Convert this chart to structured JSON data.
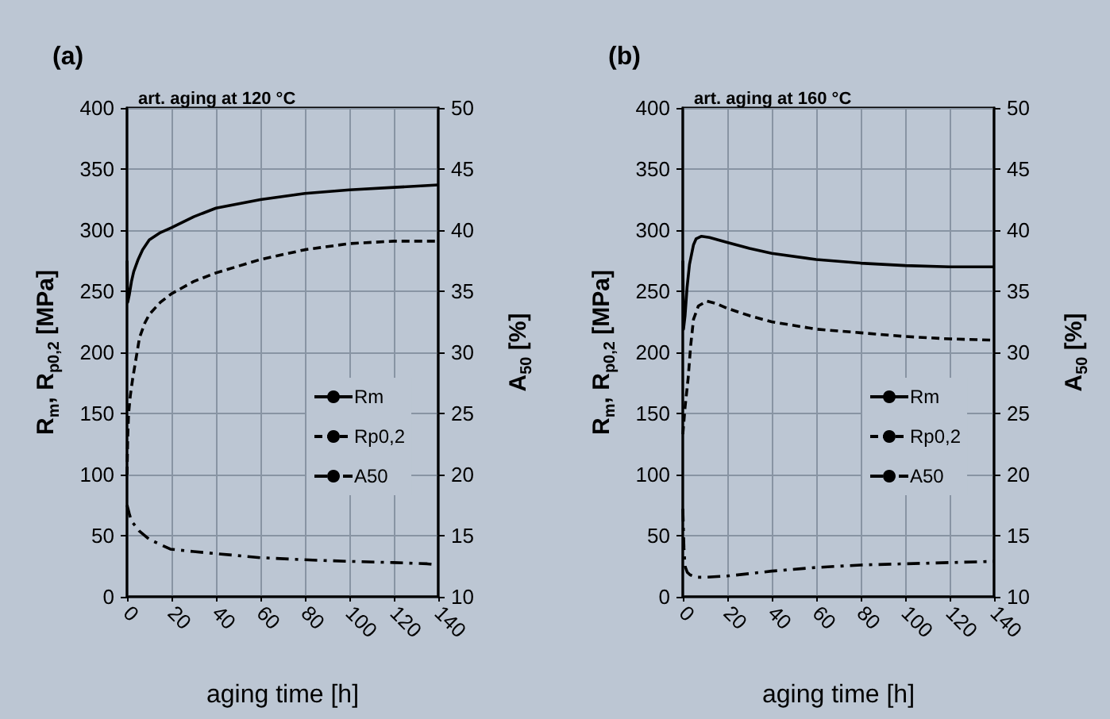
{
  "chart_data": [
    {
      "type": "line",
      "title": "(a)",
      "subtitle": "art. aging at 120 °C",
      "xlabel": "aging time [h]",
      "ylabel": "R$_{m}$, R$_{p0,2}$ [MPa]",
      "y2label": "A$_{50}$ [%]",
      "xlim": [
        0,
        140
      ],
      "xticks": [
        0,
        20,
        40,
        60,
        80,
        100,
        120,
        140
      ],
      "ylim": [
        0,
        400
      ],
      "yticks": [
        0,
        50,
        100,
        150,
        200,
        250,
        300,
        350,
        400
      ],
      "y2lim": [
        10,
        50
      ],
      "y2ticks": [
        10,
        15,
        20,
        25,
        30,
        35,
        40,
        45,
        50
      ],
      "grid": true,
      "legend": "bottom right",
      "marker": "none",
      "series": [
        {
          "name": "Rm",
          "color": "#000000",
          "line_style": "solid",
          "x": [
            0,
            0.3,
            1,
            2,
            3,
            5,
            7,
            10,
            15,
            20,
            30,
            40,
            60,
            80,
            100,
            120,
            140
          ],
          "values": [
            275,
            241,
            247,
            258,
            266,
            276,
            284,
            292,
            298,
            302,
            311,
            318,
            325,
            330,
            333,
            335,
            337
          ]
        },
        {
          "name": "Rp0,2",
          "color": "#000000",
          "line_style": "dashed",
          "x": [
            0,
            0.3,
            0.7,
            1.5,
            2.5,
            3.6,
            5.6,
            8,
            10,
            15,
            20,
            30,
            40,
            60,
            80,
            100,
            120,
            140
          ],
          "values": [
            100,
            130,
            150,
            165,
            178,
            190,
            212,
            224,
            231,
            241,
            248,
            258,
            265,
            276,
            284,
            289,
            291,
            291
          ]
        },
        {
          "name": "A50",
          "color": "#000000",
          "line_style": "dashdot",
          "axis": "y2",
          "x": [
            0,
            1,
            2,
            5.4,
            10,
            19.5,
            30,
            48,
            60,
            83.5,
            100,
            120,
            135,
            140
          ],
          "values": [
            17.5,
            16.8,
            16.2,
            15.4,
            14.7,
            13.9,
            13.7,
            13.4,
            13.2,
            13.0,
            12.9,
            12.8,
            12.7,
            12.6
          ]
        }
      ]
    },
    {
      "type": "line",
      "title": "(b)",
      "subtitle": "art. aging at 160 °C",
      "xlabel": "aging time [h]",
      "ylabel": "R$_{m}$, R$_{p0,2}$ [MPa]",
      "y2label": "A$_{50}$ [%]",
      "xlim": [
        0,
        140
      ],
      "xticks": [
        0,
        20,
        40,
        60,
        80,
        100,
        120,
        140
      ],
      "ylim": [
        0,
        400
      ],
      "yticks": [
        0,
        50,
        100,
        150,
        200,
        250,
        300,
        350,
        400
      ],
      "y2lim": [
        10,
        50
      ],
      "y2ticks": [
        10,
        15,
        20,
        25,
        30,
        35,
        40,
        45,
        50
      ],
      "grid": true,
      "legend": "bottom right",
      "marker": "none",
      "series": [
        {
          "name": "Rm",
          "color": "#000000",
          "line_style": "solid",
          "x": [
            0,
            0.3,
            1,
            1.9,
            3,
            4.8,
            6,
            8.4,
            12,
            20,
            30,
            40,
            60,
            80,
            100,
            120,
            140
          ],
          "values": [
            275,
            219,
            230,
            253,
            272,
            288,
            293,
            295,
            294,
            290,
            285,
            281,
            276,
            273,
            271,
            270,
            270
          ]
        },
        {
          "name": "Rp0,2",
          "color": "#000000",
          "line_style": "dashed",
          "x": [
            0,
            1,
            2.4,
            3.5,
            4.8,
            7,
            10.8,
            15,
            20,
            30,
            40,
            60,
            80,
            100,
            120,
            140
          ],
          "values": [
            133,
            155,
            179,
            205,
            227,
            238,
            242,
            240,
            236,
            230,
            225,
            219,
            216,
            213,
            211,
            210
          ]
        },
        {
          "name": "A50",
          "color": "#000000",
          "line_style": "dashdot",
          "axis": "y2",
          "x": [
            0,
            0.5,
            1,
            2,
            3.2,
            6,
            10,
            20,
            30,
            40,
            60,
            80,
            100,
            120,
            140
          ],
          "values": [
            17.2,
            14,
            12.5,
            12,
            11.8,
            11.6,
            11.6,
            11.7,
            11.9,
            12.1,
            12.4,
            12.6,
            12.7,
            12.8,
            12.9
          ]
        }
      ]
    }
  ]
}
